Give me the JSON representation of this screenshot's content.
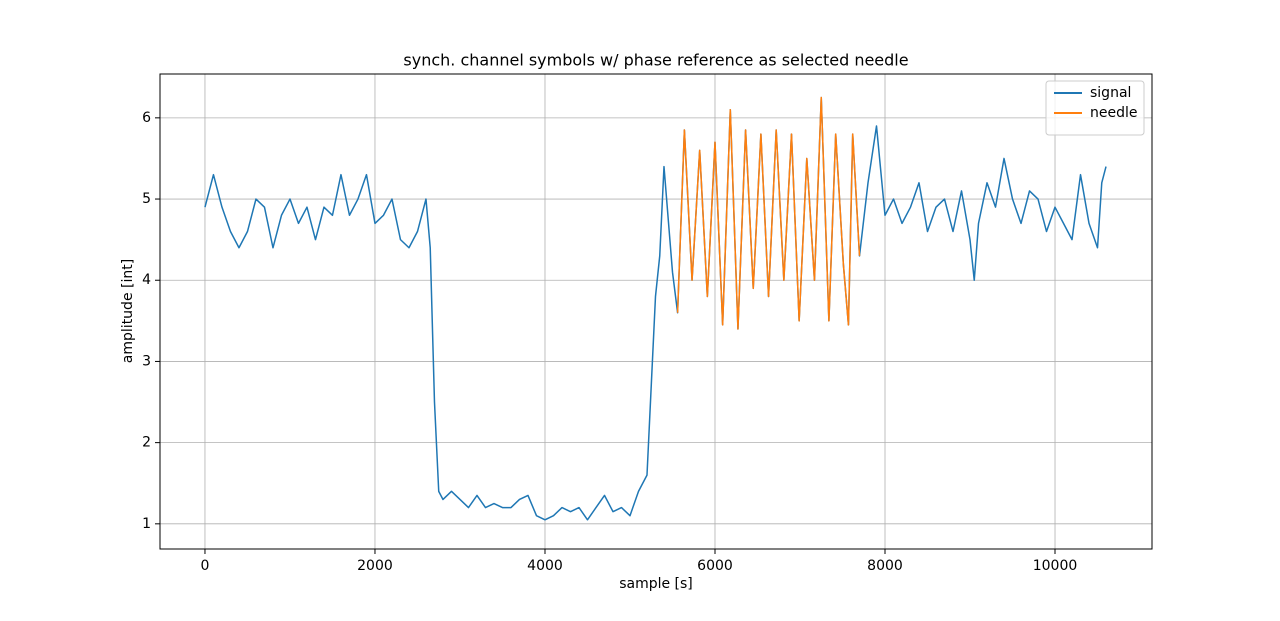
{
  "chart_data": {
    "type": "line",
    "title": "synch. channel symbols w/ phase reference as selected needle",
    "xlabel": "sample [s]",
    "ylabel": "amplitude [int]",
    "xlim": [
      -529,
      11141
    ],
    "ylim": [
      0.69,
      6.54
    ],
    "xticks": [
      0,
      2000,
      4000,
      6000,
      8000,
      10000
    ],
    "yticks": [
      1,
      2,
      3,
      4,
      5,
      6
    ],
    "grid": true,
    "legend": "upper right",
    "series": [
      {
        "name": "signal",
        "color": "#1f77b4",
        "x": [
          0,
          100,
          200,
          300,
          400,
          500,
          600,
          700,
          800,
          900,
          1000,
          1100,
          1200,
          1300,
          1400,
          1500,
          1600,
          1700,
          1800,
          1900,
          2000,
          2100,
          2200,
          2300,
          2400,
          2500,
          2600,
          2650,
          2700,
          2750,
          2800,
          2900,
          3000,
          3100,
          3200,
          3300,
          3400,
          3500,
          3600,
          3700,
          3800,
          3900,
          4000,
          4100,
          4200,
          4300,
          4400,
          4500,
          4600,
          4700,
          4800,
          4900,
          5000,
          5100,
          5200,
          5300,
          5350,
          5400,
          5500,
          5560,
          5640,
          5730,
          5820,
          5910,
          6000,
          6090,
          6180,
          6270,
          6360,
          6450,
          6540,
          6630,
          6720,
          6810,
          6900,
          6990,
          7080,
          7170,
          7250,
          7340,
          7420,
          7510,
          7570,
          7620,
          7700,
          7800,
          7900,
          8000,
          8100,
          8200,
          8300,
          8400,
          8500,
          8600,
          8700,
          8800,
          8900,
          9000,
          9050,
          9100,
          9200,
          9300,
          9400,
          9500,
          9600,
          9700,
          9800,
          9900,
          10000,
          10100,
          10200,
          10300,
          10400,
          10500,
          10550,
          10600
        ],
        "values": [
          4.9,
          5.3,
          4.9,
          4.6,
          4.4,
          4.6,
          5.0,
          4.9,
          4.4,
          4.8,
          5.0,
          4.7,
          4.9,
          4.5,
          4.9,
          4.8,
          5.3,
          4.8,
          5.0,
          5.3,
          4.7,
          4.8,
          5.0,
          4.5,
          4.4,
          4.6,
          5.0,
          4.4,
          2.5,
          1.4,
          1.3,
          1.4,
          1.3,
          1.2,
          1.35,
          1.2,
          1.25,
          1.2,
          1.2,
          1.3,
          1.35,
          1.1,
          1.05,
          1.1,
          1.2,
          1.15,
          1.2,
          1.05,
          1.2,
          1.35,
          1.15,
          1.2,
          1.1,
          1.4,
          1.6,
          3.8,
          4.3,
          5.4,
          4.1,
          3.6,
          5.85,
          4.0,
          5.6,
          3.8,
          5.7,
          3.45,
          6.1,
          3.4,
          5.85,
          3.9,
          5.8,
          3.8,
          5.85,
          4.0,
          5.8,
          3.5,
          5.5,
          4.0,
          6.25,
          3.5,
          5.8,
          4.2,
          3.45,
          5.8,
          4.3,
          5.2,
          5.9,
          4.8,
          5.0,
          4.7,
          4.9,
          5.2,
          4.6,
          4.9,
          5.0,
          4.6,
          5.1,
          4.5,
          4.0,
          4.7,
          5.2,
          4.9,
          5.5,
          5.0,
          4.7,
          5.1,
          5.0,
          4.6,
          4.9,
          4.7,
          4.5,
          5.3,
          4.7,
          4.4,
          5.2,
          5.4
        ]
      },
      {
        "name": "needle",
        "color": "#ff7f0e",
        "x": [
          5560,
          5640,
          5730,
          5820,
          5910,
          6000,
          6090,
          6180,
          6270,
          6360,
          6450,
          6540,
          6630,
          6720,
          6810,
          6900,
          6990,
          7080,
          7170,
          7250,
          7340,
          7420,
          7510,
          7570,
          7620,
          7700
        ],
        "values": [
          3.6,
          5.85,
          4.0,
          5.6,
          3.8,
          5.7,
          3.45,
          6.1,
          3.4,
          5.85,
          3.9,
          5.8,
          3.8,
          5.85,
          4.0,
          5.8,
          3.5,
          5.5,
          4.0,
          6.25,
          3.5,
          5.8,
          4.2,
          3.45,
          5.8,
          4.3
        ]
      }
    ]
  }
}
